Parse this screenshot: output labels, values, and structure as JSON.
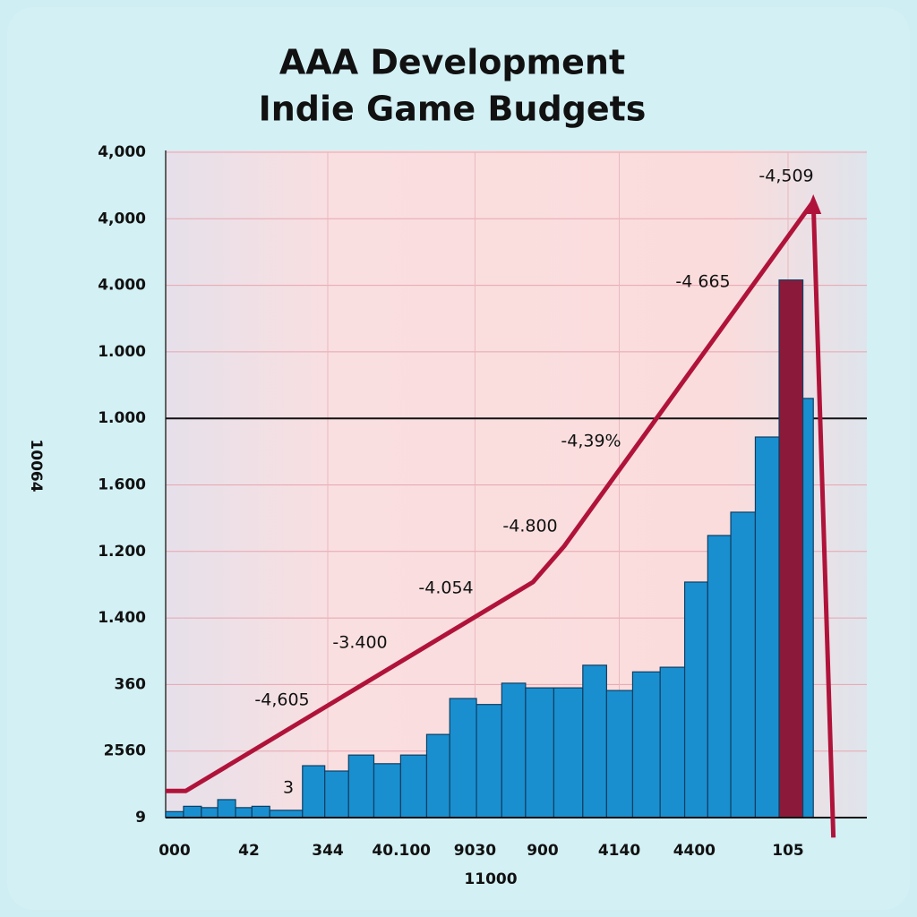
{
  "chart_data": {
    "type": "histogram",
    "title": [
      "AAA Development",
      "Indie Game Budgets"
    ],
    "x_label": "11000",
    "y_label": "10064",
    "bins": [
      0,
      0.24,
      0.48,
      0.7,
      0.94,
      1.16,
      1.4,
      1.84,
      2.14,
      2.46,
      2.8,
      3.16,
      3.51,
      3.82,
      4.18,
      4.52,
      4.84,
      5.22,
      5.61,
      5.93,
      6.28,
      6.65,
      6.98,
      7.29,
      7.6,
      7.93,
      8.25,
      8.57,
      8.71
    ],
    "values": [
      0.09,
      0.17,
      0.15,
      0.27,
      0.15,
      0.17,
      0.11,
      0.78,
      0.7,
      0.94,
      0.81,
      0.94,
      1.25,
      1.79,
      1.7,
      2.02,
      1.95,
      1.95,
      2.29,
      1.91,
      2.19,
      2.26,
      3.54,
      4.24,
      4.59,
      5.72,
      8.08,
      6.3
    ],
    "color": "#1a8fd0",
    "highlight": {
      "index": 26,
      "color": "#8b1a3a"
    },
    "line": {
      "color": "#b0133a",
      "x": [
        0,
        0.27,
        4.94,
        5.36,
        8.71,
        8.98
      ],
      "values": [
        0.4,
        0.4,
        3.54,
        4.08,
        9.26,
        -0.3
      ]
    },
    "annotations": [
      "-4,509",
      "-4 665",
      "-4,39%",
      "-4.800",
      "-4.054",
      "-3.400",
      "-4,605",
      "3"
    ],
    "reference_line": 6,
    "xlim": [
      0,
      9.43
    ],
    "ylim": [
      0,
      10
    ],
    "xticks": [
      {
        "value": 0.12,
        "label": "000"
      },
      {
        "value": 1.12,
        "label": "42"
      },
      {
        "value": 2.18,
        "label": "344"
      },
      {
        "value": 3.17,
        "label": "40.100"
      },
      {
        "value": 4.16,
        "label": "9030"
      },
      {
        "value": 5.07,
        "label": "900"
      },
      {
        "value": 6.1,
        "label": "4140"
      },
      {
        "value": 7.11,
        "label": "4400"
      },
      {
        "value": 8.37,
        "label": "105"
      }
    ],
    "yticks": [
      {
        "value": 0,
        "label": "9"
      },
      {
        "value": 1,
        "label": "2560"
      },
      {
        "value": 2,
        "label": "360"
      },
      {
        "value": 3,
        "label": "1.400"
      },
      {
        "value": 4,
        "label": "1.200"
      },
      {
        "value": 5,
        "label": "1.600"
      },
      {
        "value": 6,
        "label": "1.000"
      },
      {
        "value": 7,
        "label": "1.000"
      },
      {
        "value": 8,
        "label": "4.000"
      },
      {
        "value": 9,
        "label": "4,000"
      },
      {
        "value": 10,
        "label": "4,000"
      }
    ],
    "grid": true
  }
}
